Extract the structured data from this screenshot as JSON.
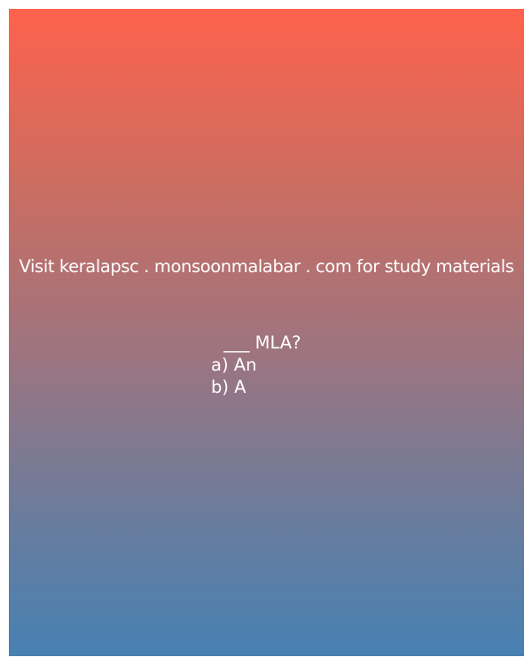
{
  "promo_text": "Visit keralapsc . monsoonmalabar . com for study materials",
  "question": {
    "text": " ___ MLA?"
  },
  "options": [
    {
      "label": "a) An"
    },
    {
      "label": "b) A"
    }
  ],
  "colors": {
    "gradient_top": "#fe624c",
    "gradient_bottom": "#4781b3",
    "text": "#ffffff"
  }
}
